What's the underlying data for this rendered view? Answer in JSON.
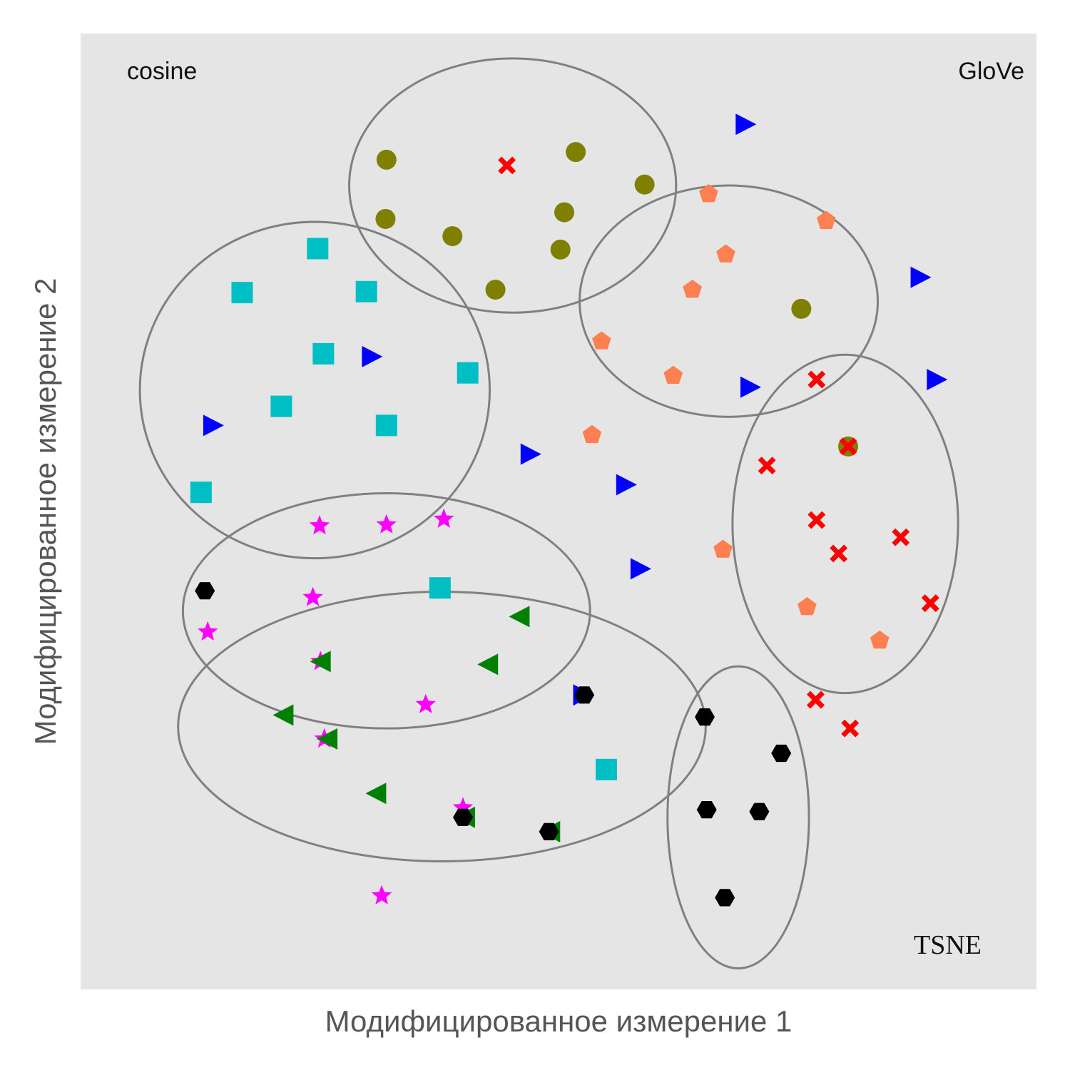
{
  "chart_data": {
    "type": "scatter",
    "xlabel": "Модифицированное измерение 1",
    "ylabel": "Модифицированное измерение 2",
    "annotations": {
      "top_left": "cosine",
      "top_right": "GloVe",
      "bottom_right": "TSNE"
    },
    "xlim": [
      0,
      100
    ],
    "ylim": [
      0,
      100
    ],
    "grid": false,
    "legend": "none",
    "series": [
      {
        "marker": "square",
        "color": "#00bfc4",
        "points": [
          [
            24.8,
            77.5
          ],
          [
            16.9,
            72.9
          ],
          [
            29.9,
            73.0
          ],
          [
            25.4,
            66.5
          ],
          [
            40.5,
            64.5
          ],
          [
            21.0,
            61.0
          ],
          [
            32.0,
            59.0
          ],
          [
            12.6,
            52.0
          ],
          [
            37.6,
            42.0
          ],
          [
            55.0,
            23.0
          ]
        ]
      },
      {
        "marker": "circle",
        "color": "#808000",
        "points": [
          [
            32.0,
            86.8
          ],
          [
            51.8,
            87.6
          ],
          [
            59.0,
            84.2
          ],
          [
            31.9,
            80.6
          ],
          [
            38.9,
            78.8
          ],
          [
            50.6,
            81.3
          ],
          [
            50.2,
            77.4
          ],
          [
            43.4,
            73.2
          ],
          [
            75.4,
            71.2
          ],
          [
            80.3,
            56.8
          ]
        ]
      },
      {
        "marker": "cross",
        "color": "#ff0000",
        "points": [
          [
            44.6,
            86.2
          ],
          [
            77.0,
            63.8
          ],
          [
            80.3,
            56.8
          ],
          [
            71.8,
            54.8
          ],
          [
            77.0,
            49.1
          ],
          [
            79.3,
            45.6
          ],
          [
            85.8,
            47.3
          ],
          [
            88.9,
            40.4
          ],
          [
            76.9,
            30.3
          ],
          [
            80.5,
            27.3
          ]
        ]
      },
      {
        "marker": "pentagon",
        "color": "#ff7f50",
        "points": [
          [
            65.7,
            83.2
          ],
          [
            78.0,
            80.4
          ],
          [
            67.5,
            76.9
          ],
          [
            64.0,
            73.2
          ],
          [
            54.5,
            67.8
          ],
          [
            62.0,
            64.2
          ],
          [
            53.5,
            58.0
          ],
          [
            67.2,
            46.0
          ],
          [
            76.0,
            40.0
          ],
          [
            83.6,
            36.5
          ]
        ]
      },
      {
        "marker": "triangle-right",
        "color": "#0000ff",
        "points": [
          [
            69.5,
            90.5
          ],
          [
            87.8,
            74.5
          ],
          [
            30.4,
            66.2
          ],
          [
            89.5,
            63.8
          ],
          [
            70.0,
            63.0
          ],
          [
            13.8,
            59.0
          ],
          [
            47.0,
            56.0
          ],
          [
            57.0,
            52.8
          ],
          [
            58.5,
            44.0
          ],
          [
            52.5,
            30.8
          ]
        ]
      },
      {
        "marker": "star",
        "color": "#ff00ff",
        "points": [
          [
            25.0,
            48.5
          ],
          [
            32.0,
            48.6
          ],
          [
            38.0,
            49.2
          ],
          [
            24.3,
            41.0
          ],
          [
            13.3,
            37.4
          ],
          [
            25.1,
            34.3
          ],
          [
            36.1,
            29.8
          ],
          [
            25.5,
            26.2
          ],
          [
            40.0,
            19.0
          ],
          [
            31.5,
            9.8
          ]
        ]
      },
      {
        "marker": "triangle-left",
        "color": "#008000",
        "points": [
          [
            46.0,
            39.0
          ],
          [
            42.7,
            34.0
          ],
          [
            25.2,
            34.3
          ],
          [
            21.3,
            28.7
          ],
          [
            25.9,
            26.2
          ],
          [
            31.0,
            20.5
          ],
          [
            40.3,
            18.0
          ],
          [
            49.2,
            16.5
          ]
        ]
      },
      {
        "marker": "hexagon",
        "color": "#000000",
        "points": [
          [
            13.0,
            41.7
          ],
          [
            52.7,
            30.8
          ],
          [
            65.3,
            28.5
          ],
          [
            73.3,
            24.7
          ],
          [
            65.5,
            18.8
          ],
          [
            71.0,
            18.6
          ],
          [
            40.0,
            18.0
          ],
          [
            49.0,
            16.5
          ],
          [
            67.4,
            9.6
          ]
        ]
      }
    ],
    "ellipses": [
      {
        "cx": 45.2,
        "cy": 84.1,
        "rx": 17.1,
        "ry": 13.3
      },
      {
        "cx": 24.5,
        "cy": 62.7,
        "rx": 18.3,
        "ry": 17.6
      },
      {
        "cx": 67.8,
        "cy": 72.0,
        "rx": 15.6,
        "ry": 12.1
      },
      {
        "cx": 80.0,
        "cy": 48.7,
        "rx": 11.8,
        "ry": 17.7
      },
      {
        "cx": 32.0,
        "cy": 39.6,
        "rx": 21.3,
        "ry": 12.3
      },
      {
        "cx": 37.8,
        "cy": 27.5,
        "rx": 27.6,
        "ry": 14.1
      },
      {
        "cx": 68.8,
        "cy": 18.0,
        "rx": 7.4,
        "ry": 15.8
      }
    ]
  }
}
